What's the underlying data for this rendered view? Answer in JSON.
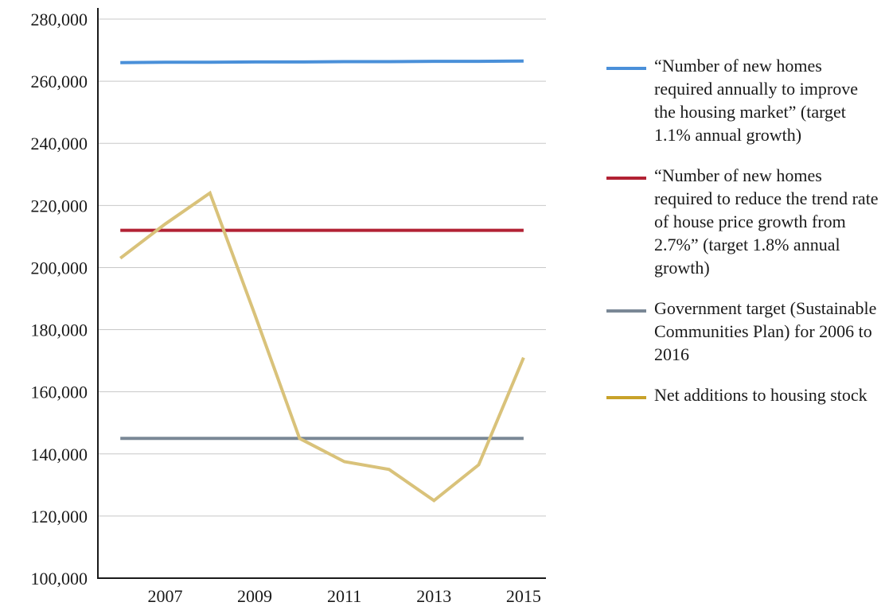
{
  "chart_data": {
    "type": "line",
    "x": [
      2006,
      2007,
      2008,
      2009,
      2010,
      2011,
      2012,
      2013,
      2014,
      2015
    ],
    "x_ticks": [
      "2007",
      "2009",
      "2011",
      "2013",
      "2015"
    ],
    "y_ticks": [
      "100,000",
      "120,000",
      "140,000",
      "160,000",
      "180,000",
      "200,000",
      "220,000",
      "240,000",
      "260,000",
      "280,000"
    ],
    "ylim": [
      100000,
      280000
    ],
    "xlim": [
      2005.5,
      2015.5
    ],
    "grid": true,
    "legend_position": "right",
    "series": [
      {
        "name": "“Number of new homes required annually to improve the housing market” (target 1.1% annual growth)",
        "color": "#4a90d9",
        "values": [
          266000,
          266100,
          266100,
          266200,
          266200,
          266300,
          266300,
          266400,
          266400,
          266500
        ]
      },
      {
        "name": "“Number of new homes required to reduce the trend rate of house price growth from 2.7%” (target 1.8% annual growth)",
        "color": "#b22234",
        "values": [
          212000,
          212000,
          212000,
          212000,
          212000,
          212000,
          212000,
          212000,
          212000,
          212000
        ]
      },
      {
        "name": "Government target (Sustainable Communities Plan) for 2006 to 2016",
        "color": "#7a8896",
        "values": [
          145000,
          145000,
          145000,
          145000,
          145000,
          145000,
          145000,
          145000,
          145000,
          145000
        ]
      },
      {
        "name": "Net additions to housing stock",
        "color": "#d9c27a",
        "legend_color": "#c8a22a",
        "values": [
          203000,
          214000,
          224000,
          185000,
          145000,
          137500,
          135000,
          125000,
          136500,
          171000
        ]
      }
    ]
  }
}
